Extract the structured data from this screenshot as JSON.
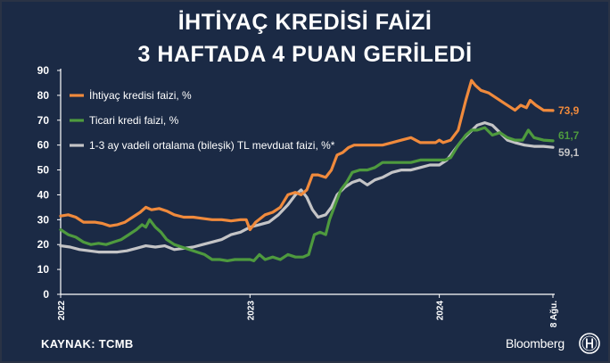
{
  "header": {
    "title_line1": "İHTİYAÇ KREDİSİ FAİZİ",
    "title_line2": "3 HAFTADA 4 PUAN GERİLEDİ"
  },
  "footer": {
    "source": "KAYNAK: TCMB",
    "brand": "Bloomberg",
    "logo_icon": "bloomberg-ht-logo-icon"
  },
  "colors": {
    "background": "#1b2a45",
    "personal_loan": "#f08a3c",
    "commercial_loan": "#4e9a3e",
    "deposit": "#c4c4c6",
    "text": "#ffffff"
  },
  "chart_data": {
    "type": "line",
    "title": "",
    "xlabel": "",
    "ylabel": "",
    "ylim": [
      0,
      90
    ],
    "yticks": [
      0,
      10,
      20,
      30,
      40,
      50,
      60,
      70,
      80,
      90
    ],
    "x_ticks": [
      {
        "label": "2022",
        "x": 0
      },
      {
        "label": "2023",
        "x": 1
      },
      {
        "label": "2024",
        "x": 2
      },
      {
        "label": "8 Ağu.",
        "x": 2.6
      }
    ],
    "x_unit": "years since start of 2022",
    "grid": false,
    "legend_position": "top-left",
    "series": [
      {
        "name": "İhtiyaç kredisi faizi, %",
        "color": "#f08a3c",
        "end_label": "73,9",
        "points": [
          [
            0,
            31.5
          ],
          [
            0.04,
            32
          ],
          [
            0.08,
            31
          ],
          [
            0.12,
            29
          ],
          [
            0.18,
            29
          ],
          [
            0.22,
            28.5
          ],
          [
            0.26,
            27.5
          ],
          [
            0.3,
            28
          ],
          [
            0.34,
            29
          ],
          [
            0.38,
            31
          ],
          [
            0.42,
            33
          ],
          [
            0.45,
            35
          ],
          [
            0.48,
            34
          ],
          [
            0.52,
            34.5
          ],
          [
            0.56,
            33.5
          ],
          [
            0.6,
            32
          ],
          [
            0.65,
            31
          ],
          [
            0.7,
            31
          ],
          [
            0.75,
            30.5
          ],
          [
            0.8,
            30
          ],
          [
            0.85,
            30
          ],
          [
            0.9,
            29.5
          ],
          [
            0.95,
            30
          ],
          [
            0.98,
            30
          ],
          [
            1.0,
            26
          ],
          [
            1.03,
            29
          ],
          [
            1.08,
            32
          ],
          [
            1.12,
            33
          ],
          [
            1.16,
            35
          ],
          [
            1.2,
            40
          ],
          [
            1.24,
            41
          ],
          [
            1.27,
            40
          ],
          [
            1.3,
            42
          ],
          [
            1.33,
            48
          ],
          [
            1.36,
            48
          ],
          [
            1.4,
            47
          ],
          [
            1.43,
            50
          ],
          [
            1.46,
            56
          ],
          [
            1.49,
            57
          ],
          [
            1.52,
            59
          ],
          [
            1.55,
            60
          ],
          [
            1.6,
            60
          ],
          [
            1.65,
            60
          ],
          [
            1.7,
            60
          ],
          [
            1.75,
            61
          ],
          [
            1.8,
            62
          ],
          [
            1.85,
            63
          ],
          [
            1.9,
            61
          ],
          [
            1.95,
            61
          ],
          [
            1.98,
            61
          ],
          [
            2.0,
            62
          ],
          [
            2.02,
            61
          ],
          [
            2.06,
            62
          ],
          [
            2.1,
            66
          ],
          [
            2.14,
            78
          ],
          [
            2.17,
            86
          ],
          [
            2.19,
            84
          ],
          [
            2.22,
            82
          ],
          [
            2.26,
            81
          ],
          [
            2.3,
            79
          ],
          [
            2.34,
            77
          ],
          [
            2.38,
            75
          ],
          [
            2.4,
            74
          ],
          [
            2.43,
            76
          ],
          [
            2.46,
            75
          ],
          [
            2.48,
            78
          ],
          [
            2.51,
            76
          ],
          [
            2.55,
            74
          ],
          [
            2.6,
            73.9
          ]
        ]
      },
      {
        "name": "Ticari kredi faizi, %",
        "color": "#4e9a3e",
        "end_label": "61,7",
        "points": [
          [
            0,
            26
          ],
          [
            0.04,
            24
          ],
          [
            0.08,
            23
          ],
          [
            0.12,
            21
          ],
          [
            0.16,
            20
          ],
          [
            0.2,
            20.5
          ],
          [
            0.24,
            20
          ],
          [
            0.28,
            21
          ],
          [
            0.32,
            22
          ],
          [
            0.36,
            24
          ],
          [
            0.4,
            26
          ],
          [
            0.43,
            28
          ],
          [
            0.45,
            27
          ],
          [
            0.47,
            30
          ],
          [
            0.5,
            27
          ],
          [
            0.53,
            25
          ],
          [
            0.56,
            22
          ],
          [
            0.6,
            20
          ],
          [
            0.64,
            19
          ],
          [
            0.68,
            18
          ],
          [
            0.72,
            17
          ],
          [
            0.76,
            16
          ],
          [
            0.8,
            14
          ],
          [
            0.84,
            14
          ],
          [
            0.88,
            13.5
          ],
          [
            0.92,
            14
          ],
          [
            0.96,
            14
          ],
          [
            1.0,
            14
          ],
          [
            1.02,
            13.5
          ],
          [
            1.05,
            16
          ],
          [
            1.08,
            14
          ],
          [
            1.12,
            15
          ],
          [
            1.16,
            14
          ],
          [
            1.2,
            16
          ],
          [
            1.24,
            15
          ],
          [
            1.28,
            15
          ],
          [
            1.31,
            16
          ],
          [
            1.34,
            24
          ],
          [
            1.37,
            25
          ],
          [
            1.4,
            24
          ],
          [
            1.42,
            30
          ],
          [
            1.45,
            36
          ],
          [
            1.48,
            42
          ],
          [
            1.51,
            45
          ],
          [
            1.54,
            49
          ],
          [
            1.58,
            50
          ],
          [
            1.62,
            50
          ],
          [
            1.66,
            51
          ],
          [
            1.7,
            53
          ],
          [
            1.75,
            53
          ],
          [
            1.8,
            53
          ],
          [
            1.85,
            53
          ],
          [
            1.9,
            54
          ],
          [
            1.95,
            54
          ],
          [
            2.0,
            54
          ],
          [
            2.03,
            54
          ],
          [
            2.06,
            55
          ],
          [
            2.1,
            60
          ],
          [
            2.14,
            64
          ],
          [
            2.17,
            66
          ],
          [
            2.2,
            66
          ],
          [
            2.24,
            67
          ],
          [
            2.28,
            64
          ],
          [
            2.32,
            65
          ],
          [
            2.36,
            63
          ],
          [
            2.4,
            62
          ],
          [
            2.44,
            62
          ],
          [
            2.47,
            66
          ],
          [
            2.5,
            63
          ],
          [
            2.55,
            62
          ],
          [
            2.6,
            61.7
          ]
        ]
      },
      {
        "name": "1-3 ay vadeli ortalama (bileşik) TL mevduat faizi, %*",
        "color": "#c4c4c6",
        "end_label": "59,1",
        "points": [
          [
            0,
            19.5
          ],
          [
            0.05,
            19
          ],
          [
            0.1,
            18
          ],
          [
            0.15,
            17.5
          ],
          [
            0.2,
            17
          ],
          [
            0.25,
            17
          ],
          [
            0.3,
            17
          ],
          [
            0.35,
            17.5
          ],
          [
            0.4,
            18.5
          ],
          [
            0.45,
            19.5
          ],
          [
            0.5,
            19
          ],
          [
            0.55,
            19.5
          ],
          [
            0.6,
            18
          ],
          [
            0.65,
            18.5
          ],
          [
            0.7,
            19
          ],
          [
            0.75,
            20
          ],
          [
            0.8,
            21
          ],
          [
            0.85,
            22
          ],
          [
            0.9,
            24
          ],
          [
            0.95,
            25
          ],
          [
            1.0,
            27
          ],
          [
            1.05,
            28
          ],
          [
            1.1,
            29
          ],
          [
            1.15,
            32
          ],
          [
            1.2,
            36
          ],
          [
            1.24,
            40
          ],
          [
            1.27,
            42
          ],
          [
            1.3,
            39
          ],
          [
            1.33,
            34
          ],
          [
            1.36,
            31
          ],
          [
            1.4,
            32
          ],
          [
            1.43,
            35
          ],
          [
            1.46,
            40
          ],
          [
            1.5,
            43
          ],
          [
            1.54,
            45
          ],
          [
            1.58,
            46
          ],
          [
            1.62,
            44
          ],
          [
            1.66,
            46
          ],
          [
            1.7,
            47
          ],
          [
            1.75,
            49
          ],
          [
            1.8,
            50
          ],
          [
            1.85,
            50
          ],
          [
            1.9,
            51
          ],
          [
            1.95,
            52
          ],
          [
            2.0,
            52
          ],
          [
            2.04,
            54
          ],
          [
            2.08,
            58
          ],
          [
            2.12,
            62
          ],
          [
            2.16,
            65
          ],
          [
            2.2,
            68
          ],
          [
            2.24,
            69
          ],
          [
            2.28,
            68
          ],
          [
            2.32,
            65
          ],
          [
            2.36,
            62
          ],
          [
            2.4,
            61
          ],
          [
            2.45,
            60
          ],
          [
            2.5,
            59.5
          ],
          [
            2.55,
            59.5
          ],
          [
            2.6,
            59.1
          ]
        ]
      }
    ]
  }
}
